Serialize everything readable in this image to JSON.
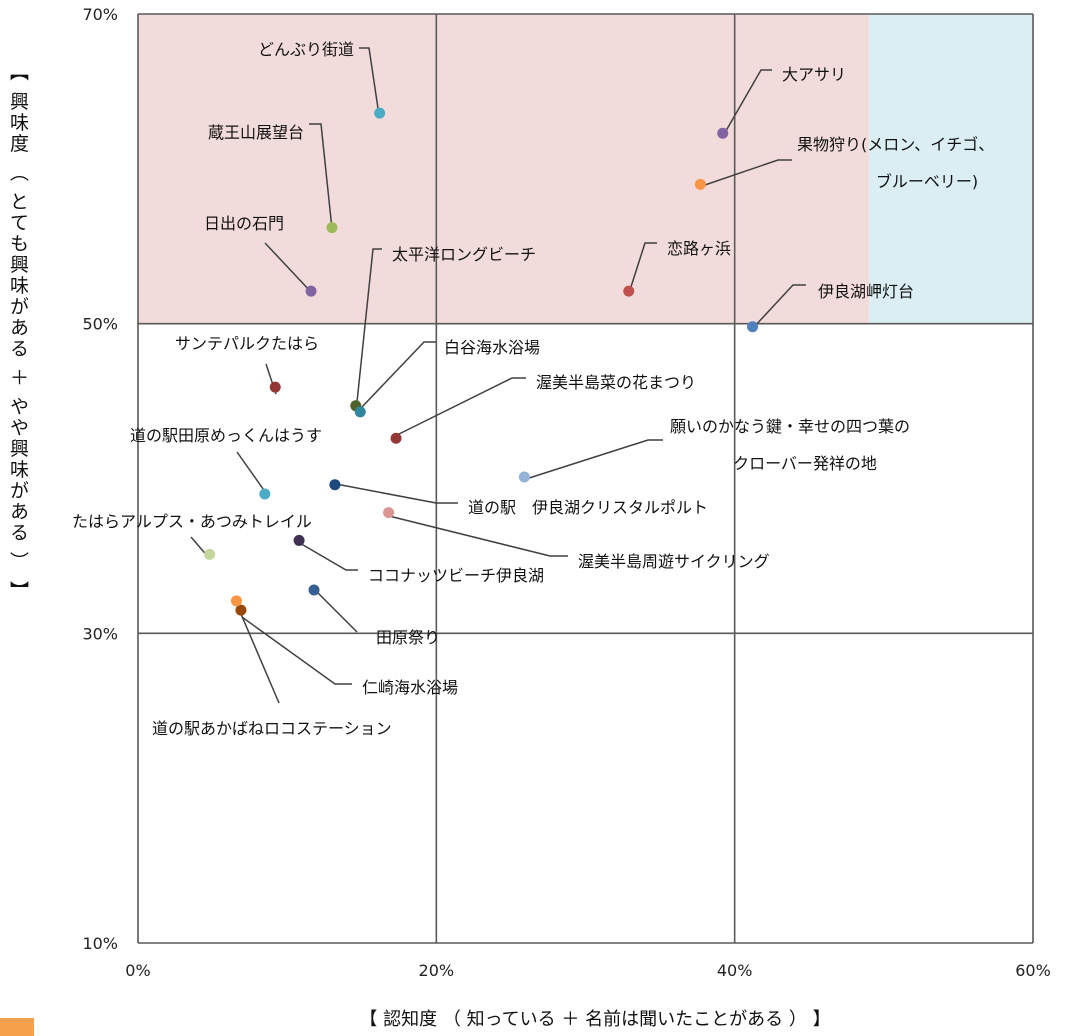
{
  "chart_data": {
    "type": "scatter",
    "xlabel": "【 認知度 （ 知っている ＋ 名前は聞いたことがある ） 】",
    "ylabel": "【 興味度 （ とても興味がある ＋ やや興味がある ） 】",
    "xlim": [
      0,
      60
    ],
    "ylim": [
      10,
      70
    ],
    "x_ticks": [
      "0%",
      "20%",
      "40%",
      "60%"
    ],
    "y_ticks": [
      "10%",
      "30%",
      "50%",
      "70%"
    ],
    "quadrant_lines": {
      "x": [
        20,
        40
      ],
      "y": [
        30,
        50
      ]
    },
    "regions": [
      {
        "x0": 0,
        "x1": 49,
        "y0": 50,
        "y1": 70,
        "color": "#f2dcdb"
      },
      {
        "x0": 49,
        "x1": 60,
        "y0": 50,
        "y1": 70,
        "color": "#daeef3"
      }
    ],
    "grid": false,
    "points": [
      {
        "name": "どんぶり街道",
        "x": 16.2,
        "y": 63.6,
        "color": "#4bacc6",
        "label": [
          "どんぶり街道"
        ]
      },
      {
        "name": "蔵王山展望台",
        "x": 13.0,
        "y": 56.2,
        "color": "#9bbb59",
        "label": [
          "蔵王山展望台"
        ]
      },
      {
        "name": "日出の石門",
        "x": 11.6,
        "y": 52.1,
        "color": "#8064a2",
        "label": [
          "日出の石門"
        ]
      },
      {
        "name": "大アサリ",
        "x": 39.2,
        "y": 62.3,
        "color": "#8064a2",
        "label": [
          "大アサリ"
        ]
      },
      {
        "name": "果物狩り(メロン、イチゴ、ブルーベリー)",
        "x": 37.7,
        "y": 59.0,
        "color": "#f79646",
        "label": [
          "果物狩り(メロン、イチゴ、",
          "ブルーベリー)"
        ]
      },
      {
        "name": "恋路ヶ浜",
        "x": 32.9,
        "y": 52.1,
        "color": "#c0504d",
        "label": [
          "恋路ヶ浜"
        ]
      },
      {
        "name": "伊良湖岬灯台",
        "x": 41.2,
        "y": 49.8,
        "color": "#4f81bd",
        "label": [
          "伊良湖岬灯台"
        ]
      },
      {
        "name": "太平洋ロングビーチ",
        "x": 14.6,
        "y": 44.7,
        "color": "#4f6228",
        "label": [
          "太平洋ロングビーチ"
        ]
      },
      {
        "name": "白谷海水浴場",
        "x": 14.9,
        "y": 44.3,
        "color": "#31859c",
        "label": [
          "白谷海水浴場"
        ]
      },
      {
        "name": "サンテパルクたはら",
        "x": 9.2,
        "y": 45.9,
        "color": "#943634",
        "label": [
          "サンテパルクたはら"
        ]
      },
      {
        "name": "渥美半島菜の花まつり",
        "x": 17.3,
        "y": 42.6,
        "color": "#953735",
        "label": [
          "渥美半島菜の花まつり"
        ]
      },
      {
        "name": "願いのかなう鍵・幸せの四つ葉のクローバー発祥の地",
        "x": 25.9,
        "y": 40.1,
        "color": "#95b3d7",
        "label": [
          "願いのかなう鍵・幸せの四つ葉の",
          "クローバー発祥の地"
        ]
      },
      {
        "name": "道の駅田原めっくんはうす",
        "x": 8.5,
        "y": 39.0,
        "color": "#4bacc6",
        "label": [
          "道の駅田原めっくんはうす"
        ]
      },
      {
        "name": "道の駅　伊良湖クリスタルポルト",
        "x": 13.2,
        "y": 39.6,
        "color": "#1f497d",
        "label": [
          "道の駅　伊良湖クリスタルポルト"
        ]
      },
      {
        "name": "渥美半島周遊サイクリング",
        "x": 16.8,
        "y": 37.8,
        "color": "#d99694",
        "label": [
          "渥美半島周遊サイクリング"
        ]
      },
      {
        "name": "たはらアルプス・あつみトレイル",
        "x": 4.8,
        "y": 35.1,
        "color": "#c3d69b",
        "label": [
          "たはらアルプス・あつみトレイル"
        ]
      },
      {
        "name": "ココナッツビーチ伊良湖",
        "x": 10.8,
        "y": 36.0,
        "color": "#3f3151",
        "label": [
          "ココナッツビーチ伊良湖"
        ]
      },
      {
        "name": "田原祭り",
        "x": 11.8,
        "y": 32.8,
        "color": "#366092",
        "label": [
          "田原祭り"
        ]
      },
      {
        "name": "仁崎海水浴場",
        "x": 6.9,
        "y": 31.5,
        "color": "#984807",
        "label": [
          "仁崎海水浴場"
        ]
      },
      {
        "name": "道の駅あかばねロコステーション",
        "x": 6.6,
        "y": 32.1,
        "color": "#f79646",
        "label": [
          "道の駅あかばねロコステーション"
        ]
      }
    ]
  }
}
